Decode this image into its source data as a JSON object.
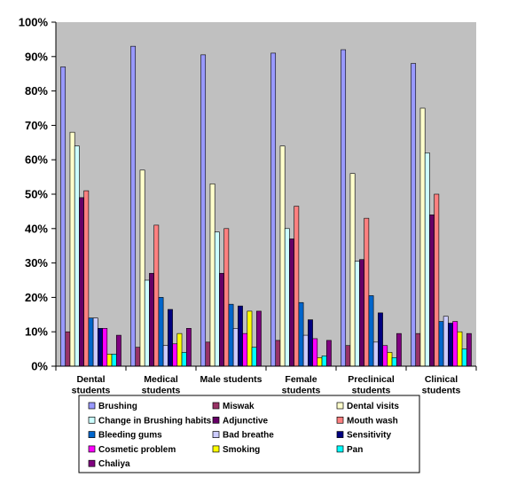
{
  "chart_data": {
    "type": "bar",
    "ylim": [
      0,
      100
    ],
    "y_tick_labels": [
      "0%",
      "10%",
      "20%",
      "30%",
      "40%",
      "50%",
      "60%",
      "70%",
      "80%",
      "90%",
      "100%"
    ],
    "grid": false,
    "plot_background": "#c0c0c0",
    "legend_position": "bottom",
    "categories": [
      [
        "Dental",
        "students"
      ],
      [
        "Medical",
        "students"
      ],
      [
        "Male students"
      ],
      [
        "Female",
        "students"
      ],
      [
        "Preclinical",
        "students"
      ],
      [
        "Clinical",
        "students"
      ]
    ],
    "series": [
      {
        "name": "Brushing",
        "color": "#9999ff",
        "values": [
          87,
          93,
          90.5,
          91,
          92,
          88
        ]
      },
      {
        "name": "Miswak",
        "color": "#993366",
        "values": [
          10,
          5.5,
          7,
          7.5,
          6,
          9.5
        ]
      },
      {
        "name": "Dental visits",
        "color": "#ffffcc",
        "values": [
          68,
          57,
          53,
          64,
          56,
          75
        ]
      },
      {
        "name": "Change in Brushing habits",
        "color": "#ccffff",
        "values": [
          64,
          25,
          39,
          40,
          30.5,
          62
        ]
      },
      {
        "name": "Adjunctive",
        "color": "#660066",
        "values": [
          49,
          27,
          27,
          37,
          31,
          44
        ]
      },
      {
        "name": "Mouth wash",
        "color": "#ff8080",
        "values": [
          51,
          41,
          40,
          46.5,
          43,
          50
        ]
      },
      {
        "name": "Bleeding gums",
        "color": "#0066cc",
        "values": [
          14,
          20,
          18,
          18.5,
          20.5,
          13
        ]
      },
      {
        "name": "Bad breathe",
        "color": "#ccccff",
        "values": [
          14,
          6,
          11,
          9,
          7,
          14.5
        ]
      },
      {
        "name": "Sensitivity",
        "color": "#000080",
        "values": [
          11,
          16.5,
          17.5,
          13.5,
          15.5,
          12.5
        ]
      },
      {
        "name": "Cosmetic problem",
        "color": "#ff00ff",
        "values": [
          11,
          6.5,
          9.5,
          8,
          6,
          13
        ]
      },
      {
        "name": "Smoking",
        "color": "#ffff00",
        "values": [
          3.5,
          9.5,
          16,
          2.5,
          4,
          10
        ]
      },
      {
        "name": "Pan",
        "color": "#00ffff",
        "values": [
          3.5,
          4,
          5.5,
          3,
          2.5,
          5
        ]
      },
      {
        "name": "Chaliya",
        "color": "#800080",
        "values": [
          9,
          11,
          16,
          7.5,
          9.5,
          9.5
        ]
      }
    ]
  }
}
